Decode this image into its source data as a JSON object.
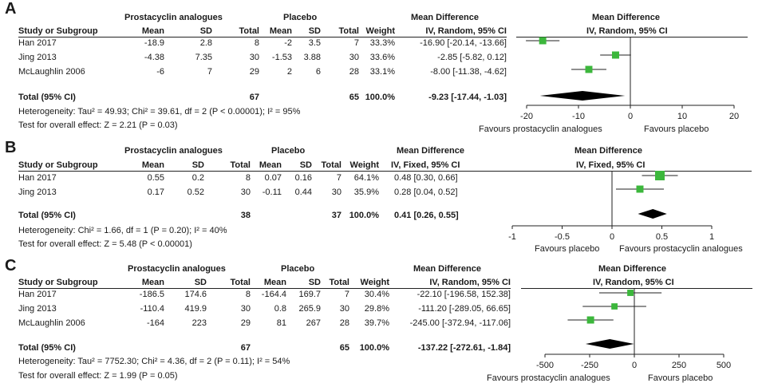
{
  "chart_data": [
    {
      "type": "forest",
      "label": "A",
      "headers": {
        "group_exp": "Prostacyclin analogues",
        "group_ctrl": "Placebo",
        "study": "Study or Subgroup",
        "mean": "Mean",
        "sd": "SD",
        "total": "Total",
        "weight": "Weight",
        "md_title": "Mean Difference",
        "md_method": "IV, Random, 95% CI",
        "plot_title": "Mean Difference",
        "plot_method": "IV, Random, 95% CI"
      },
      "studies": [
        {
          "study": "Han 2017",
          "exp_mean": "-18.9",
          "exp_sd": "2.8",
          "exp_total": "8",
          "ctrl_mean": "-2",
          "ctrl_sd": "3.5",
          "ctrl_total": "7",
          "weight": "33.3%",
          "ci_text": "-16.90 [-20.14, -13.66]",
          "md": -16.9,
          "lo": -20.14,
          "hi": -13.66,
          "w": 33.3
        },
        {
          "study": "Jing 2013",
          "exp_mean": "-4.38",
          "exp_sd": "7.35",
          "exp_total": "30",
          "ctrl_mean": "-1.53",
          "ctrl_sd": "3.88",
          "ctrl_total": "30",
          "weight": "33.6%",
          "ci_text": "-2.85 [-5.82, 0.12]",
          "md": -2.85,
          "lo": -5.82,
          "hi": 0.12,
          "w": 33.6
        },
        {
          "study": "McLaughlin 2006",
          "exp_mean": "-6",
          "exp_sd": "7",
          "exp_total": "29",
          "ctrl_mean": "2",
          "ctrl_sd": "6",
          "ctrl_total": "28",
          "weight": "33.1%",
          "ci_text": "-8.00 [-11.38, -4.62]",
          "md": -8.0,
          "lo": -11.38,
          "hi": -4.62,
          "w": 33.1
        }
      ],
      "total": {
        "label": "Total (95% CI)",
        "exp_total": "67",
        "ctrl_total": "65",
        "weight": "100.0%",
        "ci_text": "-9.23 [-17.44, -1.03]",
        "md": -9.23,
        "lo": -17.44,
        "hi": -1.03
      },
      "heterogeneity": "Heterogeneity: Tau² = 49.93; Chi² = 39.61, df = 2 (P < 0.00001); I² = 95%",
      "overall_effect": "Test for overall effect: Z = 2.21 (P = 0.03)",
      "axis": {
        "min": -20,
        "max": 20,
        "ticks": [
          -20,
          -10,
          0,
          10,
          20
        ],
        "tick_labels": [
          "-20",
          "-10",
          "0",
          "10",
          "20"
        ]
      },
      "favours_left": "Favours prostacyclin analogues",
      "favours_right": "Favours placebo"
    },
    {
      "type": "forest",
      "label": "B",
      "headers": {
        "group_exp": "Prostacyclin analogues",
        "group_ctrl": "Placebo",
        "study": "Study or Subgroup",
        "mean": "Mean",
        "sd": "SD",
        "total": "Total",
        "weight": "Weight",
        "md_title": "Mean Difference",
        "md_method": "IV, Fixed, 95% CI",
        "plot_title": "Mean Difference",
        "plot_method": "IV, Fixed, 95% CI"
      },
      "studies": [
        {
          "study": "Han 2017",
          "exp_mean": "0.55",
          "exp_sd": "0.2",
          "exp_total": "8",
          "ctrl_mean": "0.07",
          "ctrl_sd": "0.16",
          "ctrl_total": "7",
          "weight": "64.1%",
          "ci_text": "0.48 [0.30, 0.66]",
          "md": 0.48,
          "lo": 0.3,
          "hi": 0.66,
          "w": 64.1
        },
        {
          "study": "Jing 2013",
          "exp_mean": "0.17",
          "exp_sd": "0.52",
          "exp_total": "30",
          "ctrl_mean": "-0.11",
          "ctrl_sd": "0.44",
          "ctrl_total": "30",
          "weight": "35.9%",
          "ci_text": "0.28 [0.04, 0.52]",
          "md": 0.28,
          "lo": 0.04,
          "hi": 0.52,
          "w": 35.9
        }
      ],
      "total": {
        "label": "Total (95% CI)",
        "exp_total": "38",
        "ctrl_total": "37",
        "weight": "100.0%",
        "ci_text": "0.41 [0.26, 0.55]",
        "md": 0.41,
        "lo": 0.26,
        "hi": 0.55
      },
      "heterogeneity": "Heterogeneity: Chi² = 1.66, df = 1 (P = 0.20); I² = 40%",
      "overall_effect": "Test for overall effect: Z = 5.48 (P < 0.00001)",
      "axis": {
        "min": -1,
        "max": 1,
        "ticks": [
          -1,
          -0.5,
          0,
          0.5,
          1
        ],
        "tick_labels": [
          "-1",
          "-0.5",
          "0",
          "0.5",
          "1"
        ]
      },
      "favours_left": "Favours placebo",
      "favours_right": "Favours prostacyclin analogues"
    },
    {
      "type": "forest",
      "label": "C",
      "headers": {
        "group_exp": "Prostacyclin analogues",
        "group_ctrl": "Placebo",
        "study": "Study or Subgroup",
        "mean": "Mean",
        "sd": "SD",
        "total": "Total",
        "weight": "Weight",
        "md_title": "Mean Difference",
        "md_method": "IV, Random, 95% CI",
        "plot_title": "Mean Difference",
        "plot_method": "IV, Random, 95% CI"
      },
      "studies": [
        {
          "study": "Han 2017",
          "exp_mean": "-186.5",
          "exp_sd": "174.6",
          "exp_total": "8",
          "ctrl_mean": "-164.4",
          "ctrl_sd": "169.7",
          "ctrl_total": "7",
          "weight": "30.4%",
          "ci_text": "-22.10 [-196.58, 152.38]",
          "md": -22.1,
          "lo": -196.58,
          "hi": 152.38,
          "w": 30.4
        },
        {
          "study": "Jing 2013",
          "exp_mean": "-110.4",
          "exp_sd": "419.9",
          "exp_total": "30",
          "ctrl_mean": "0.8",
          "ctrl_sd": "265.9",
          "ctrl_total": "30",
          "weight": "29.8%",
          "ci_text": "-111.20 [-289.05, 66.65]",
          "md": -111.2,
          "lo": -289.05,
          "hi": 66.65,
          "w": 29.8
        },
        {
          "study": "McLaughlin 2006",
          "exp_mean": "-164",
          "exp_sd": "223",
          "exp_total": "29",
          "ctrl_mean": "81",
          "ctrl_sd": "267",
          "ctrl_total": "28",
          "weight": "39.7%",
          "ci_text": "-245.00 [-372.94, -117.06]",
          "md": -245.0,
          "lo": -372.94,
          "hi": -117.06,
          "w": 39.7
        }
      ],
      "total": {
        "label": "Total (95% CI)",
        "exp_total": "67",
        "ctrl_total": "65",
        "weight": "100.0%",
        "ci_text": "-137.22 [-272.61, -1.84]",
        "md": -137.22,
        "lo": -272.61,
        "hi": -1.84
      },
      "heterogeneity": "Heterogeneity: Tau² = 7752.30; Chi² = 4.36, df = 2 (P = 0.11); I² = 54%",
      "overall_effect": "Test for overall effect: Z = 1.99 (P = 0.05)",
      "axis": {
        "min": -500,
        "max": 500,
        "ticks": [
          -500,
          -250,
          0,
          250,
          500
        ],
        "tick_labels": [
          "-500",
          "-250",
          "0",
          "250",
          "500"
        ]
      },
      "favours_left": "Favours prostacyclin analogues",
      "favours_right": "Favours placebo"
    }
  ],
  "colors": {
    "marker": "#3cb73c",
    "diamond": "#000000",
    "line": "#222222"
  }
}
